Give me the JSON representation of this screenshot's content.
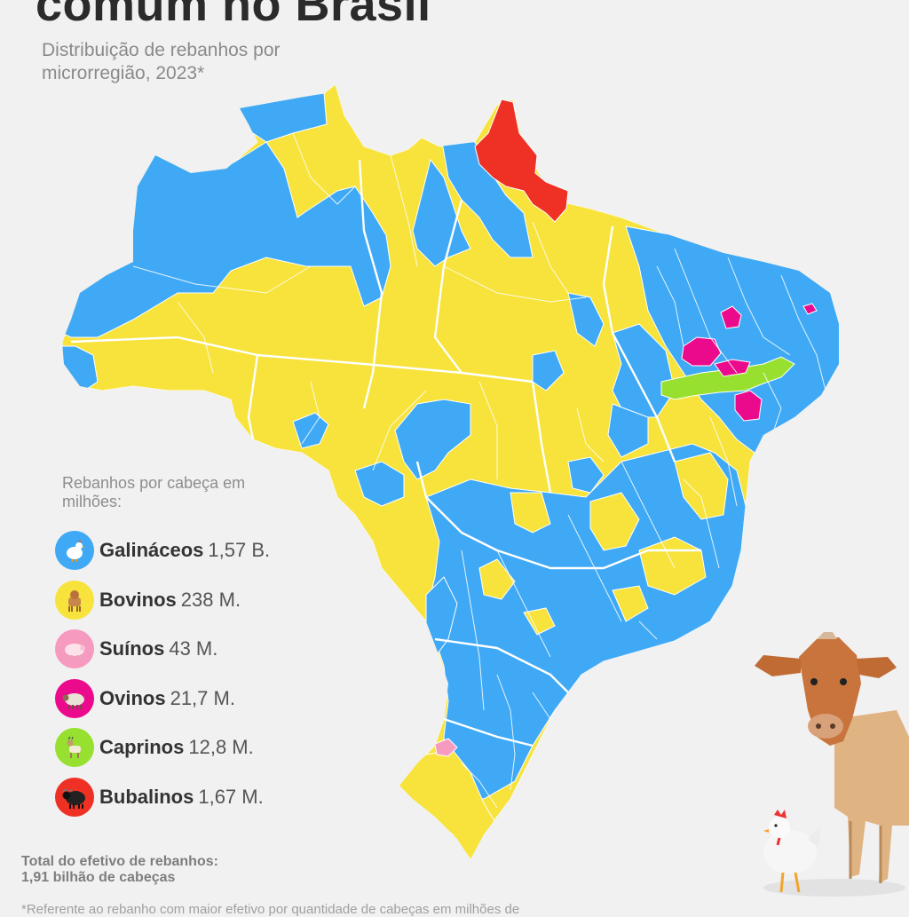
{
  "header": {
    "title": "comum no Brasil",
    "subtitle": "Distribuição de rebanhos por microrregião, 2023*"
  },
  "legend": {
    "title": "Rebanhos por cabeça em milhões:",
    "items": [
      {
        "name": "Galináceos",
        "value": "1,57 B.",
        "color": "#3fa9f5",
        "icon": "chicken-icon"
      },
      {
        "name": "Bovinos",
        "value": "238 M.",
        "color": "#f7e33b",
        "icon": "cow-icon"
      },
      {
        "name": "Suínos",
        "value": "43 M.",
        "color": "#f79ac0",
        "icon": "pig-icon"
      },
      {
        "name": "Ovinos",
        "value": "21,7 M.",
        "color": "#ec0a8c",
        "icon": "sheep-icon"
      },
      {
        "name": "Caprinos",
        "value": "12,8 M.",
        "color": "#97e02f",
        "icon": "goat-icon"
      },
      {
        "name": "Bubalinos",
        "value": "1,67 M.",
        "color": "#ee3124",
        "icon": "buffalo-icon"
      }
    ]
  },
  "total": {
    "label": "Total do efetivo de rebanhos:",
    "value": "1,91 bilhão de cabeças"
  },
  "footnote": "*Referente ao rebanho com maior efetivo por quantidade de cabeças em milhões de",
  "map": {
    "colors": {
      "chicken": "#3fa9f5",
      "cattle": "#f7e33b",
      "pig": "#f79ac0",
      "sheep": "#ec0a8c",
      "goat": "#97e02f",
      "buffalo": "#ee3124",
      "borders": "#ffffff"
    }
  }
}
